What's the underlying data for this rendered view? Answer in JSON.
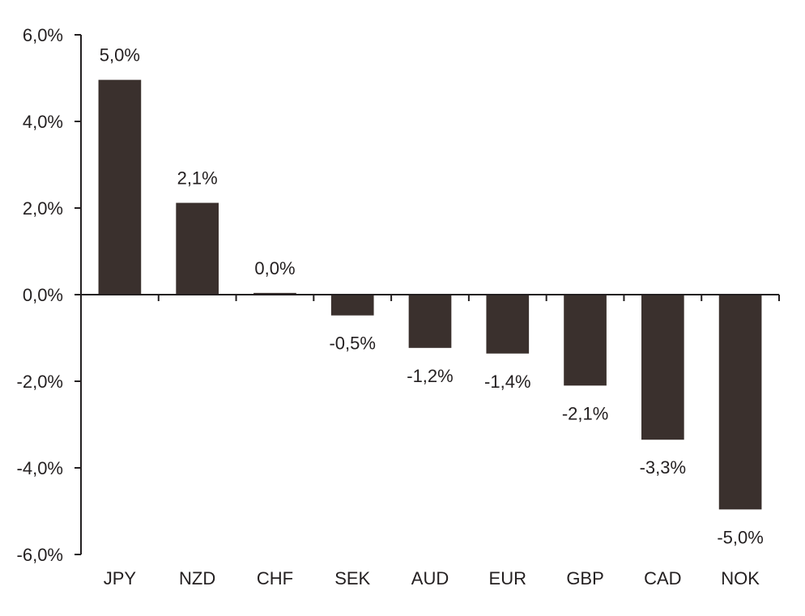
{
  "chart_data": {
    "type": "bar",
    "categories": [
      "JPY",
      "NZD",
      "CHF",
      "SEK",
      "AUD",
      "EUR",
      "GBP",
      "CAD",
      "NOK"
    ],
    "values": [
      4.96,
      2.12,
      0.04,
      -0.48,
      -1.23,
      -1.36,
      -2.1,
      -3.35,
      -4.96
    ],
    "data_labels": [
      "5,0%",
      "2,1%",
      "0,0%",
      "-0,5%",
      "-1,2%",
      "-1,4%",
      "-2,1%",
      "-3,3%",
      "-5,0%"
    ],
    "yticks": [
      6,
      4,
      2,
      0,
      -2,
      -4,
      -6
    ],
    "ytick_labels": [
      "6,0%",
      "4,0%",
      "2,0%",
      "0,0%",
      "-2,0%",
      "-4,0%",
      "-6,0%"
    ],
    "ylim": [
      -6,
      6
    ],
    "title": "",
    "xlabel": "",
    "ylabel": "",
    "grid": false,
    "legend": "none",
    "bar_color": "#3a302d"
  }
}
